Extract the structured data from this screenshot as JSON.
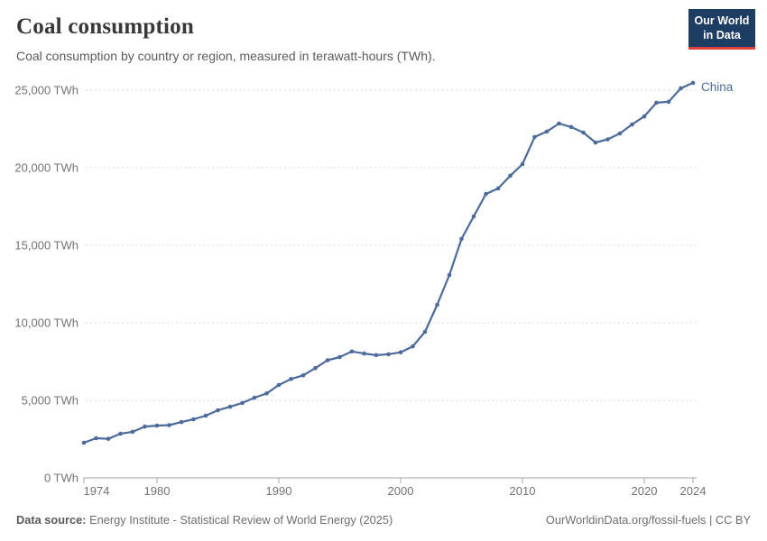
{
  "header": {
    "title": "Coal consumption",
    "subtitle": "Coal consumption by country or region, measured in terawatt-hours (TWh).",
    "logo": {
      "line1": "Our World",
      "line2": "in Data",
      "bg_color": "#1d3d63",
      "accent_color": "#e0403a"
    }
  },
  "chart_data": {
    "type": "line",
    "title": "Coal consumption",
    "xlabel": "",
    "ylabel": "",
    "unit": "TWh",
    "grid": "horizontal-dashed",
    "legend_position": "end-of-line-label",
    "xlim": [
      1974,
      2024
    ],
    "ylim": [
      0,
      25000
    ],
    "x_ticks": [
      1974,
      1980,
      1990,
      2000,
      2010,
      2020,
      2024
    ],
    "y_ticks": [
      0,
      5000,
      10000,
      15000,
      20000,
      25000
    ],
    "y_tick_labels": [
      "0 TWh",
      "5,000 TWh",
      "10,000 TWh",
      "15,000 TWh",
      "20,000 TWh",
      "25,000 TWh"
    ],
    "x": [
      1974,
      1975,
      1976,
      1977,
      1978,
      1979,
      1980,
      1981,
      1982,
      1983,
      1984,
      1985,
      1986,
      1987,
      1988,
      1989,
      1990,
      1991,
      1992,
      1993,
      1994,
      1995,
      1996,
      1997,
      1998,
      1999,
      2000,
      2001,
      2002,
      2003,
      2004,
      2005,
      2006,
      2007,
      2008,
      2009,
      2010,
      2011,
      2012,
      2013,
      2014,
      2015,
      2016,
      2017,
      2018,
      2019,
      2020,
      2021,
      2022,
      2023,
      2024
    ],
    "series": [
      {
        "name": "China",
        "color": "#4c6a9c",
        "values": [
          2270,
          2560,
          2520,
          2850,
          2970,
          3310,
          3370,
          3400,
          3600,
          3780,
          4010,
          4360,
          4590,
          4830,
          5170,
          5450,
          5990,
          6380,
          6610,
          7080,
          7590,
          7790,
          8150,
          8020,
          7910,
          7970,
          8100,
          8480,
          9420,
          11160,
          13080,
          15410,
          16860,
          18310,
          18660,
          19480,
          20230,
          21980,
          22330,
          22850,
          22620,
          22270,
          21620,
          21830,
          22210,
          22790,
          23310,
          24190,
          24250,
          25120,
          25470
        ]
      }
    ],
    "colors": {
      "gridline": "#d8d8d8",
      "axis": "#a5a5a5",
      "tick_text": "#737373"
    }
  },
  "footer": {
    "source_label": "Data source:",
    "source_text": " Energy Institute - Statistical Review of World Energy (2025)",
    "right_text": "OurWorldinData.org/fossil-fuels | CC BY"
  }
}
